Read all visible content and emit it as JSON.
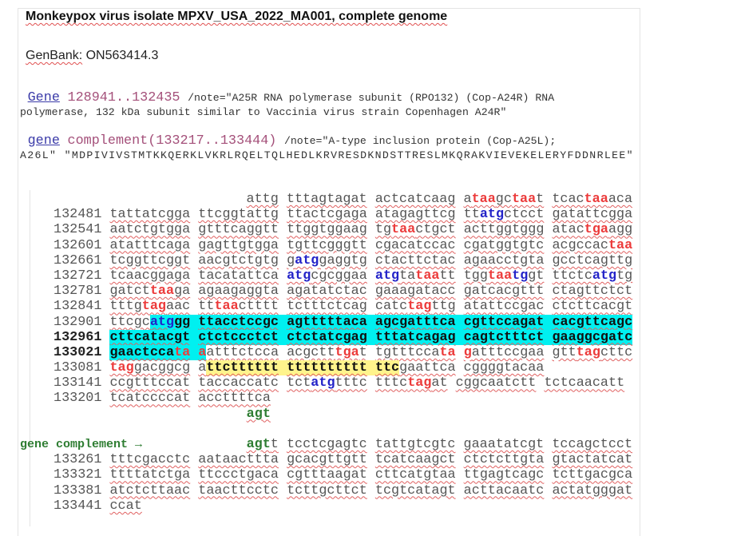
{
  "title": "Monkeypox virus isolate MPXV_USA_2022_MA001, complete genome",
  "genbank": {
    "label": "GenBank:",
    "accession": "ON563414.3"
  },
  "gene1": {
    "link": "Gene",
    "range": "128941..132435",
    "note_line1": "/note=\"A25R RNA polymerase subunit (RPO132) (Cop-A24R) RNA",
    "note_line2": "polymerase, 132 kDa subunit similar to Vaccinia virus strain Copenhagen A24R\""
  },
  "gene2": {
    "link": "gene",
    "range": "complement(133217..133444)",
    "note_line1": "/note=\"A-type inclusion protein (Cop-A25L);",
    "note_line2": "A26L\" \"MDPIVIVSTMTKKQERKLVKRLRQELTQLHEDLKRVRESDKNDSTTRESLMKQRAKVIEVEKELERYFDDNRLEE\""
  },
  "colors": {
    "stop_codon": "#ec3b3b",
    "start_codon": "#2323c8",
    "gene_marker": "#2e7d32",
    "highlight_cyan": "#00f0f0",
    "highlight_yellow": "#fff48c"
  },
  "sequence_rows": [
    {
      "kind": "right",
      "groups": [
        [
          [
            "attg",
            "n"
          ]
        ],
        [
          [
            "tttagtagat",
            "n"
          ]
        ],
        [
          [
            "actcatcaag",
            "n"
          ]
        ],
        [
          [
            "a",
            "n"
          ],
          [
            "taa",
            "r"
          ],
          [
            "gc",
            "n"
          ],
          [
            "taa",
            "r"
          ],
          [
            "t",
            "n"
          ]
        ],
        [
          [
            "tcac",
            "n"
          ],
          [
            "taa",
            "r"
          ],
          [
            "aca",
            "n"
          ]
        ]
      ]
    },
    {
      "pos": "132481",
      "groups": [
        [
          [
            "tattatcgga",
            "n"
          ]
        ],
        [
          [
            "ttcggtattg",
            "n"
          ]
        ],
        [
          [
            "ttactcgaga",
            "n"
          ]
        ],
        [
          [
            "atagagttcg",
            "n"
          ]
        ],
        [
          [
            "tt",
            "n"
          ],
          [
            "atg",
            "b"
          ],
          [
            "ctcct",
            "n"
          ]
        ],
        [
          [
            "gatattcgga",
            "n"
          ]
        ]
      ]
    },
    {
      "pos": "132541",
      "groups": [
        [
          [
            "aatctgtgga",
            "n"
          ]
        ],
        [
          [
            "gtttcaggtt",
            "n"
          ]
        ],
        [
          [
            "ttggtggaag",
            "n"
          ]
        ],
        [
          [
            "tg",
            "n"
          ],
          [
            "taa",
            "r"
          ],
          [
            "ctgct",
            "n"
          ]
        ],
        [
          [
            "acttggtggg",
            "n"
          ]
        ],
        [
          [
            "atac",
            "n"
          ],
          [
            "tga",
            "r"
          ],
          [
            "agg",
            "n"
          ]
        ]
      ]
    },
    {
      "pos": "132601",
      "groups": [
        [
          [
            "atatttcaga",
            "n"
          ]
        ],
        [
          [
            "gagttgtgga",
            "n"
          ]
        ],
        [
          [
            "tgttcgggtt",
            "n"
          ]
        ],
        [
          [
            "cgacatccac",
            "n"
          ]
        ],
        [
          [
            "cgatggtgtc",
            "n"
          ]
        ],
        [
          [
            "acgccac",
            "n"
          ],
          [
            "taa",
            "r"
          ]
        ]
      ]
    },
    {
      "pos": "132661",
      "groups": [
        [
          [
            "tcggttcggt",
            "n"
          ]
        ],
        [
          [
            "aacgtctgtg",
            "n"
          ]
        ],
        [
          [
            "g",
            "n"
          ],
          [
            "atg",
            "b"
          ],
          [
            "gaggtg",
            "n"
          ]
        ],
        [
          [
            "ctacttctac",
            "n"
          ]
        ],
        [
          [
            "agaacctgta",
            "n"
          ]
        ],
        [
          [
            "gcctcagttg",
            "n"
          ]
        ]
      ]
    },
    {
      "pos": "132721",
      "groups": [
        [
          [
            "tcaacggaga",
            "n"
          ]
        ],
        [
          [
            "tacatattca",
            "n"
          ]
        ],
        [
          [
            "atg",
            "b"
          ],
          [
            "cgcggaa",
            "n"
          ]
        ],
        [
          [
            "atg",
            "b"
          ],
          [
            "ta",
            "n"
          ],
          [
            "taa",
            "r"
          ],
          [
            "tt",
            "n"
          ]
        ],
        [
          [
            "tgg",
            "n"
          ],
          [
            "taa",
            "r"
          ],
          [
            "tg",
            "b"
          ],
          [
            "gt",
            "n"
          ]
        ],
        [
          [
            "ttctc",
            "n"
          ],
          [
            "atg",
            "b"
          ],
          [
            "tg",
            "n"
          ]
        ]
      ]
    },
    {
      "pos": "132781",
      "groups": [
        [
          [
            "gatct",
            "n"
          ],
          [
            "taa",
            "r"
          ],
          [
            "ga",
            "n"
          ]
        ],
        [
          [
            "agaagaggta",
            "n"
          ]
        ],
        [
          [
            "agatatctac",
            "n"
          ]
        ],
        [
          [
            "gaaagatacc",
            "n"
          ]
        ],
        [
          [
            "gatcacgttt",
            "n"
          ]
        ],
        [
          [
            "ctagttctct",
            "n"
          ]
        ]
      ]
    },
    {
      "pos": "132841",
      "groups": [
        [
          [
            "tttg",
            "n"
          ],
          [
            "tag",
            "r"
          ],
          [
            "aac",
            "n"
          ]
        ],
        [
          [
            "tt",
            "n"
          ],
          [
            "taa",
            "r"
          ],
          [
            "ctttt",
            "n"
          ]
        ],
        [
          [
            "tctttctcag",
            "n"
          ]
        ],
        [
          [
            "catc",
            "n"
          ],
          [
            "tag",
            "r"
          ],
          [
            "ttg",
            "n"
          ]
        ],
        [
          [
            "atattccgac",
            "n"
          ]
        ],
        [
          [
            "ctcttcacgt",
            "n"
          ]
        ]
      ]
    },
    {
      "pos": "132901",
      "groups": [
        [
          [
            "ttcgc",
            "n"
          ],
          [
            "atg",
            "b cy"
          ],
          [
            "gg",
            "k cy"
          ]
        ],
        [
          [
            "ttacctccgc",
            "k cy"
          ]
        ],
        [
          [
            "agtttttaca",
            "k cy"
          ]
        ],
        [
          [
            "agcgatttca",
            "k cy"
          ]
        ],
        [
          [
            "cgttccagat",
            "k cy"
          ]
        ],
        [
          [
            "cacgttcagc",
            "k cy"
          ]
        ]
      ]
    },
    {
      "pos": "132961",
      "bold": true,
      "groups": [
        [
          [
            "cttcatacgt",
            "k cy"
          ]
        ],
        [
          [
            "ctctccctct",
            "k cy"
          ]
        ],
        [
          [
            "ctctatcgag",
            "k cy"
          ]
        ],
        [
          [
            "tttatcagag",
            "k cy"
          ]
        ],
        [
          [
            "cagtctttct",
            "k cy"
          ]
        ],
        [
          [
            "gaaggcgatc",
            "k cy"
          ]
        ]
      ]
    },
    {
      "pos": "133021",
      "bold": true,
      "groups": [
        [
          [
            "gaactcca",
            "k cy"
          ],
          [
            "ta",
            "r cy"
          ]
        ],
        [
          [
            "a",
            "r cy"
          ],
          [
            "atttctcca",
            "n"
          ]
        ],
        [
          [
            "acgctt",
            "n"
          ],
          [
            "tga",
            "r"
          ],
          [
            "t",
            "n"
          ]
        ],
        [
          [
            "tgtttcca",
            "n"
          ],
          [
            "ta",
            "r"
          ]
        ],
        [
          [
            "g",
            "r"
          ],
          [
            "atttccgaa",
            "n"
          ]
        ],
        [
          [
            "gtt",
            "n"
          ],
          [
            "tag",
            "r"
          ],
          [
            "cttc",
            "n"
          ]
        ]
      ]
    },
    {
      "pos": "133081",
      "groups": [
        [
          [
            "tag",
            "r"
          ],
          [
            "gacggcg",
            "n"
          ]
        ],
        [
          [
            "a",
            "n"
          ],
          [
            "ttctttttt",
            "k yl"
          ]
        ],
        [
          [
            "tttttttttt",
            "k yl"
          ]
        ],
        [
          [
            "ttc",
            "k yl"
          ],
          [
            "gaattca",
            "n"
          ]
        ],
        [
          [
            "cggggtacaa",
            "n"
          ]
        ]
      ]
    },
    {
      "pos": "133141",
      "groups": [
        [
          [
            "ccgtttccat",
            "n"
          ]
        ],
        [
          [
            "taccaccatc",
            "n"
          ]
        ],
        [
          [
            "tct",
            "n"
          ],
          [
            "atg",
            "b"
          ],
          [
            "tttc",
            "n"
          ]
        ],
        [
          [
            "tttc",
            "n"
          ],
          [
            "tag",
            "r"
          ],
          [
            "at",
            "n"
          ]
        ],
        [
          [
            "cggcaatctt",
            "n"
          ]
        ],
        [
          [
            "tctcaacatt",
            "n"
          ]
        ]
      ]
    },
    {
      "pos": "133201",
      "groups": [
        [
          [
            "tcatccccat",
            "n"
          ]
        ],
        [
          [
            "accttttca",
            "n"
          ]
        ]
      ]
    },
    {
      "kind": "tail",
      "groups": [
        [
          [
            "agt",
            "g"
          ]
        ]
      ]
    },
    {
      "kind": "blank",
      "groups": []
    },
    {
      "kind": "right",
      "label": "gene complement →",
      "groups": [
        [
          [
            "agt",
            "g"
          ],
          [
            "t",
            "n"
          ]
        ],
        [
          [
            "tcctcgagtc",
            "n"
          ]
        ],
        [
          [
            "tattgtcgtc",
            "n"
          ]
        ],
        [
          [
            "gaaatatcgt",
            "n"
          ]
        ],
        [
          [
            "tccagctcct",
            "n"
          ]
        ]
      ]
    },
    {
      "pos": "133261",
      "groups": [
        [
          [
            "tttcgacctc",
            "n"
          ]
        ],
        [
          [
            "aataacttta",
            "n"
          ]
        ],
        [
          [
            "gcacgttgtt",
            "n"
          ]
        ],
        [
          [
            "tcatcaagct",
            "n"
          ]
        ],
        [
          [
            "ctctcttgta",
            "n"
          ]
        ],
        [
          [
            "gtactatcat",
            "n"
          ]
        ]
      ]
    },
    {
      "pos": "133321",
      "groups": [
        [
          [
            "ttttatctga",
            "n"
          ]
        ],
        [
          [
            "ttccctgaca",
            "n"
          ]
        ],
        [
          [
            "cgtttaagat",
            "n"
          ]
        ],
        [
          [
            "cttcatgtaa",
            "n"
          ]
        ],
        [
          [
            "ttgagtcagc",
            "n"
          ]
        ],
        [
          [
            "tcttgacgca",
            "n"
          ]
        ]
      ]
    },
    {
      "pos": "133381",
      "groups": [
        [
          [
            "atctcttaac",
            "n"
          ]
        ],
        [
          [
            "taacttcctc",
            "n"
          ]
        ],
        [
          [
            "tcttgcttct",
            "n"
          ]
        ],
        [
          [
            "tcgtcatagt",
            "n"
          ]
        ],
        [
          [
            "acttacaatc",
            "n"
          ]
        ],
        [
          [
            "actatgggat",
            "n"
          ]
        ]
      ]
    },
    {
      "pos": "133441",
      "groups": [
        [
          [
            "ccat",
            "n"
          ]
        ]
      ]
    }
  ]
}
